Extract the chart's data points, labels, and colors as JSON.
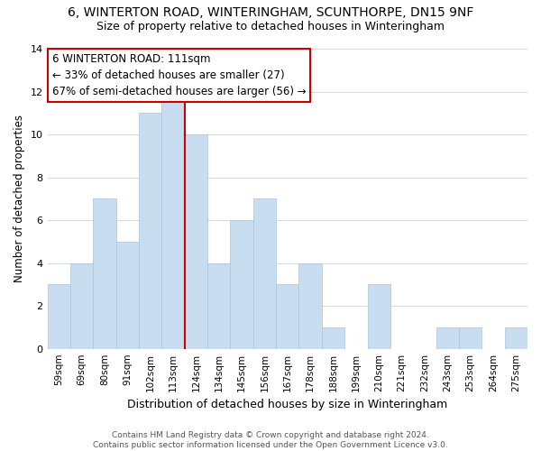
{
  "title": "6, WINTERTON ROAD, WINTERINGHAM, SCUNTHORPE, DN15 9NF",
  "subtitle": "Size of property relative to detached houses in Winteringham",
  "xlabel": "Distribution of detached houses by size in Winteringham",
  "ylabel": "Number of detached properties",
  "bar_labels": [
    "59sqm",
    "69sqm",
    "80sqm",
    "91sqm",
    "102sqm",
    "113sqm",
    "124sqm",
    "134sqm",
    "145sqm",
    "156sqm",
    "167sqm",
    "178sqm",
    "188sqm",
    "199sqm",
    "210sqm",
    "221sqm",
    "232sqm",
    "243sqm",
    "253sqm",
    "264sqm",
    "275sqm"
  ],
  "bar_values": [
    3,
    4,
    7,
    5,
    11,
    12,
    10,
    4,
    6,
    7,
    3,
    4,
    1,
    0,
    3,
    0,
    0,
    1,
    1,
    0,
    1
  ],
  "bar_color": "#c9ddf0",
  "bar_edge_color": "#a8c4e0",
  "grid_color": "#d8d8d8",
  "vline_color": "#cc0000",
  "vline_x_index": 5,
  "ylim": [
    0,
    14
  ],
  "yticks": [
    0,
    2,
    4,
    6,
    8,
    10,
    12,
    14
  ],
  "annotation_text": "6 WINTERTON ROAD: 111sqm\n← 33% of detached houses are smaller (27)\n67% of semi-detached houses are larger (56) →",
  "annotation_box_color": "#ffffff",
  "annotation_box_edge_color": "#cc0000",
  "footer_line1": "Contains HM Land Registry data © Crown copyright and database right 2024.",
  "footer_line2": "Contains public sector information licensed under the Open Government Licence v3.0.",
  "background_color": "#ffffff",
  "title_fontsize": 10,
  "subtitle_fontsize": 9,
  "annotation_fontsize": 8.5
}
